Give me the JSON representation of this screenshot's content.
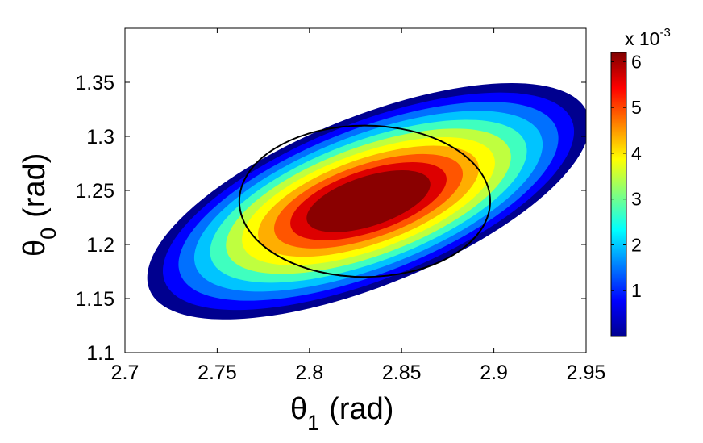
{
  "chart_data": {
    "type": "contour",
    "title": "",
    "xlabel": {
      "symbol": "θ",
      "subscript": "1",
      "unit": "(rad)"
    },
    "ylabel": {
      "symbol": "θ",
      "subscript": "0",
      "unit": "(rad)"
    },
    "xlim": [
      2.7,
      2.95
    ],
    "ylim": [
      1.1,
      1.4
    ],
    "xticks": [
      2.7,
      2.75,
      2.8,
      2.85,
      2.9,
      2.95
    ],
    "xtick_labels": [
      "2.7",
      "2.75",
      "2.8",
      "2.85",
      "2.9",
      "2.95"
    ],
    "yticks": [
      1.1,
      1.15,
      1.2,
      1.25,
      1.3,
      1.35
    ],
    "ytick_labels": [
      "1.1",
      "1.15",
      "1.2",
      "1.25",
      "1.3",
      "1.35"
    ],
    "grid": false,
    "contour_field": {
      "center": [
        2.832,
        1.24
      ],
      "peak_value": 0.0062,
      "levels": [
        0,
        0.0008,
        0.0014,
        0.002,
        0.0026,
        0.0032,
        0.0038,
        0.0044,
        0.005,
        0.0056
      ],
      "level_colors": [
        "#00008f",
        "#0000ff",
        "#0070ff",
        "#00c4ff",
        "#3fffbf",
        "#bfff3f",
        "#ffff00",
        "#ffae00",
        "#ff5500",
        "#dd0000"
      ],
      "peak_color": "#8a0000",
      "outer_semi_axes": [
        0.128,
        0.078
      ],
      "outer_rotation_deg": 22,
      "inner_semi_axes": [
        0.035,
        0.023
      ],
      "inner_rotation_deg": 18
    },
    "reference_ellipse": {
      "center": [
        2.83,
        1.24
      ],
      "semi_axes": [
        0.068,
        0.07
      ],
      "rotation_deg": 0,
      "color": "#000000"
    },
    "colorbar": {
      "ticks": [
        1,
        2,
        3,
        4,
        5,
        6
      ],
      "tick_labels": [
        "1",
        "2",
        "3",
        "4",
        "5",
        "6"
      ],
      "range": [
        0,
        6.2
      ],
      "multiplier": "x 10",
      "exponent": "-3",
      "colormap": "jet"
    }
  }
}
